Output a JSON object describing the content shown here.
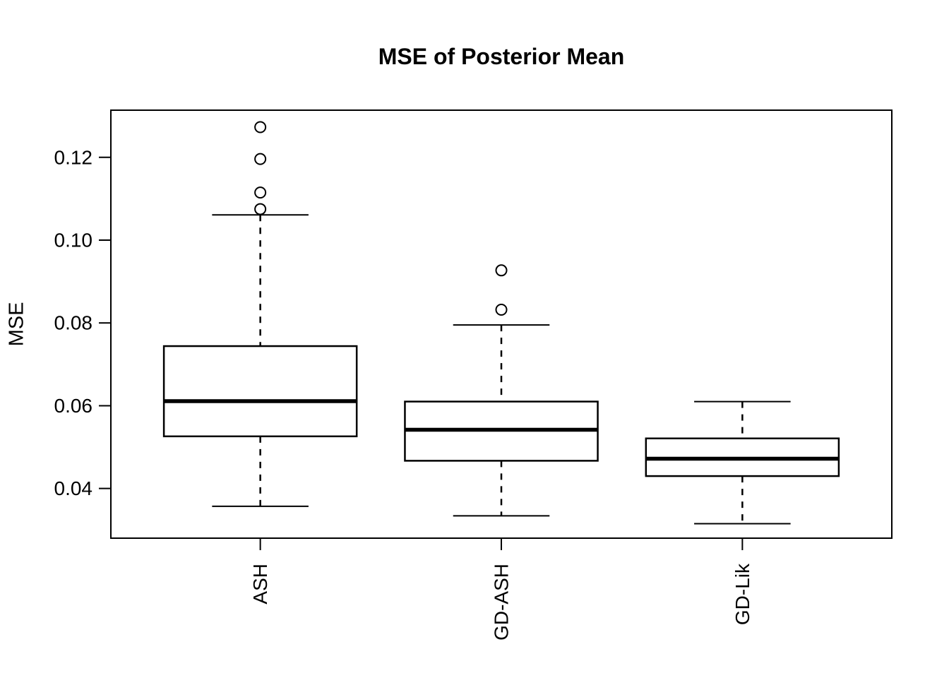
{
  "chart_data": {
    "type": "boxplot",
    "title": "MSE of Posterior Mean",
    "xlabel": "",
    "ylabel": "MSE",
    "categories": [
      "ASH",
      "GD-ASH",
      "GD-Lik"
    ],
    "series": [
      {
        "name": "ASH",
        "whisker_low": 0.0357,
        "q1": 0.0526,
        "median": 0.0611,
        "q3": 0.0744,
        "whisker_high": 0.1061,
        "outliers": [
          0.1075,
          0.1115,
          0.1196,
          0.1273
        ]
      },
      {
        "name": "GD-ASH",
        "whisker_low": 0.0334,
        "q1": 0.0467,
        "median": 0.0542,
        "q3": 0.061,
        "whisker_high": 0.0795,
        "outliers": [
          0.0832,
          0.0927
        ]
      },
      {
        "name": "GD-Lik",
        "whisker_low": 0.0315,
        "q1": 0.043,
        "median": 0.0472,
        "q3": 0.0521,
        "whisker_high": 0.061,
        "outliers": []
      }
    ],
    "yticks": [
      0.04,
      0.06,
      0.08,
      0.1,
      0.12
    ],
    "ytick_labels": [
      "0.04",
      "0.06",
      "0.08",
      "0.10",
      "0.12"
    ],
    "ylim": [
      0.028,
      0.1314
    ],
    "xlim": [
      0.38,
      3.62
    ],
    "grid": false,
    "legend": null,
    "box_width_units": 0.8,
    "whisker_cap_width_units": 0.4,
    "colors": {
      "stroke": "#000000",
      "background": "#ffffff",
      "box_fill": "#ffffff"
    }
  }
}
